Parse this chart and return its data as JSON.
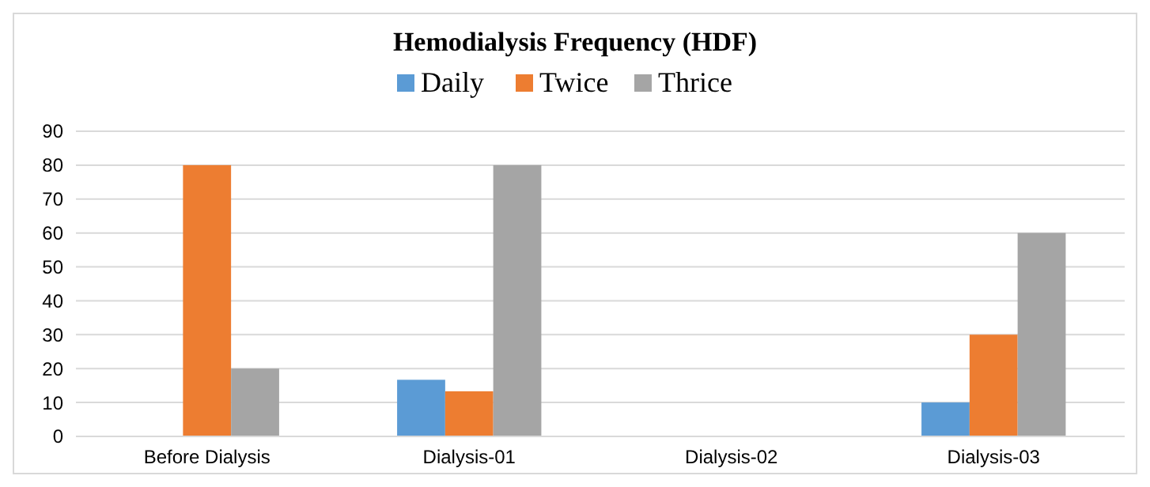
{
  "chart_data": {
    "type": "bar",
    "title": "Hemodialysis Frequency (HDF)",
    "categories": [
      "Before Dialysis",
      "Dialysis-01",
      "Dialysis-02",
      "Dialysis-03"
    ],
    "series": [
      {
        "name": "Daily",
        "color": "#5b9bd5",
        "values": [
          0,
          16.7,
          0,
          10
        ]
      },
      {
        "name": "Twice",
        "color": "#ed7d31",
        "values": [
          80,
          13.3,
          0,
          30
        ]
      },
      {
        "name": "Thrice",
        "color": "#a5a5a5",
        "values": [
          20,
          80,
          0,
          60
        ]
      }
    ],
    "ylim": [
      0,
      90
    ],
    "yticks": [
      0,
      10,
      20,
      30,
      40,
      50,
      60,
      70,
      80,
      90
    ],
    "grid": "y",
    "legend": "top"
  }
}
